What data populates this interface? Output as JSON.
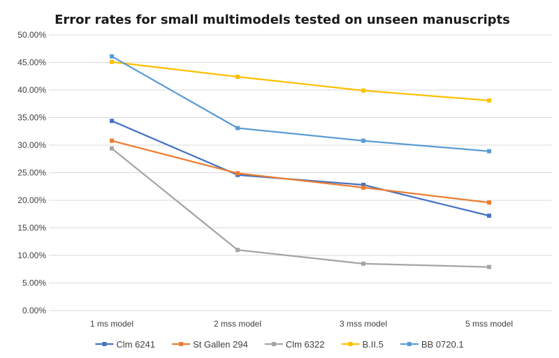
{
  "chart_data": {
    "type": "line",
    "title": "Error rates for small multimodels tested on unseen manuscripts",
    "xlabel": "",
    "ylabel": "",
    "categories": [
      "1 ms model",
      "2 mss model",
      "3 mss model",
      "5 mss model"
    ],
    "ylim": [
      0,
      0.5
    ],
    "yticks": [
      "0.00%",
      "5.00%",
      "10.00%",
      "15.00%",
      "20.00%",
      "25.00%",
      "30.00%",
      "35.00%",
      "40.00%",
      "45.00%",
      "50.00%"
    ],
    "grid": true,
    "legend_position": "bottom",
    "series": [
      {
        "name": "Clm 6241",
        "color": "#4472c4",
        "values": [
          0.344,
          0.246,
          0.228,
          0.172
        ]
      },
      {
        "name": "St Gallen 294",
        "color": "#ed7d31",
        "values": [
          0.308,
          0.249,
          0.223,
          0.196
        ]
      },
      {
        "name": "Clm 6322",
        "color": "#a5a5a5",
        "values": [
          0.294,
          0.11,
          0.085,
          0.079
        ]
      },
      {
        "name": "B.II.5",
        "color": "#ffc000",
        "values": [
          0.451,
          0.424,
          0.399,
          0.381
        ]
      },
      {
        "name": "BB 0720.1",
        "color": "#5b9bd5",
        "values": [
          0.461,
          0.331,
          0.308,
          0.289
        ]
      }
    ]
  }
}
